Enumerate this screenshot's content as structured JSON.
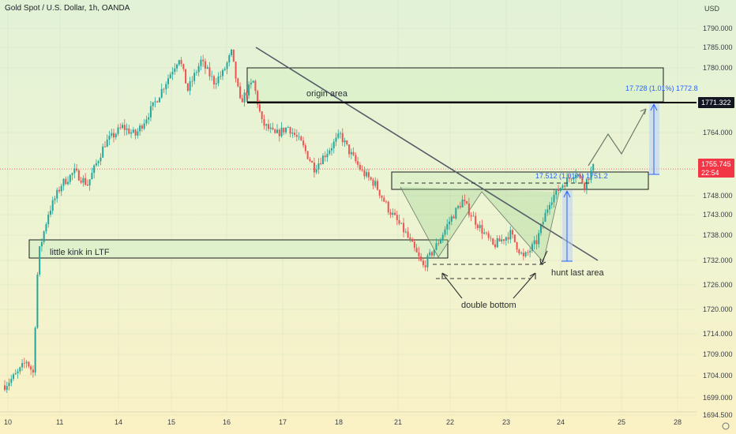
{
  "header": {
    "symbol": "Gold Spot / U.S. Dollar, 1h, OANDA"
  },
  "colors": {
    "up": "#26a69a",
    "down": "#ef5350",
    "zone_fill": "#d9f0c8",
    "zone_stroke": "#1a1a1a",
    "line": "#555b66",
    "measure": "#2962ff",
    "price_badge": "#f23645",
    "level_badge": "#131722"
  },
  "chart_data": {
    "type": "candlestick",
    "y_axis": {
      "unit_label": "USD",
      "ticks": [
        "1790.000",
        "1785.000",
        "1780.000",
        "1771.322",
        "1764.000",
        "1755.745",
        "1748.000",
        "1743.000",
        "1738.000",
        "1732.000",
        "1726.000",
        "1720.000",
        "1714.000",
        "1709.000",
        "1704.000",
        "1699.000",
        "1694.500"
      ],
      "range": [
        1693,
        1794
      ]
    },
    "x_axis": {
      "ticks": [
        "10",
        "11",
        "14",
        "15",
        "16",
        "17",
        "18",
        "21",
        "22",
        "23",
        "24",
        "25",
        "28"
      ]
    },
    "price_badge": {
      "value": "1755.745",
      "countdown": "22:54"
    },
    "level_badge": {
      "value": "1771.322"
    },
    "annotations": {
      "origin_area": "origin area",
      "little_kink": "little kink in LTF",
      "double_bottom": "double bottom",
      "hunt_last_area": "hunt last area",
      "measure_upper": "17.728 (1.01%) 1772.8",
      "measure_lower": "17.512 (1.01%) 1751.2"
    },
    "candles_note": "OHLC approximate, read from chart"
  }
}
